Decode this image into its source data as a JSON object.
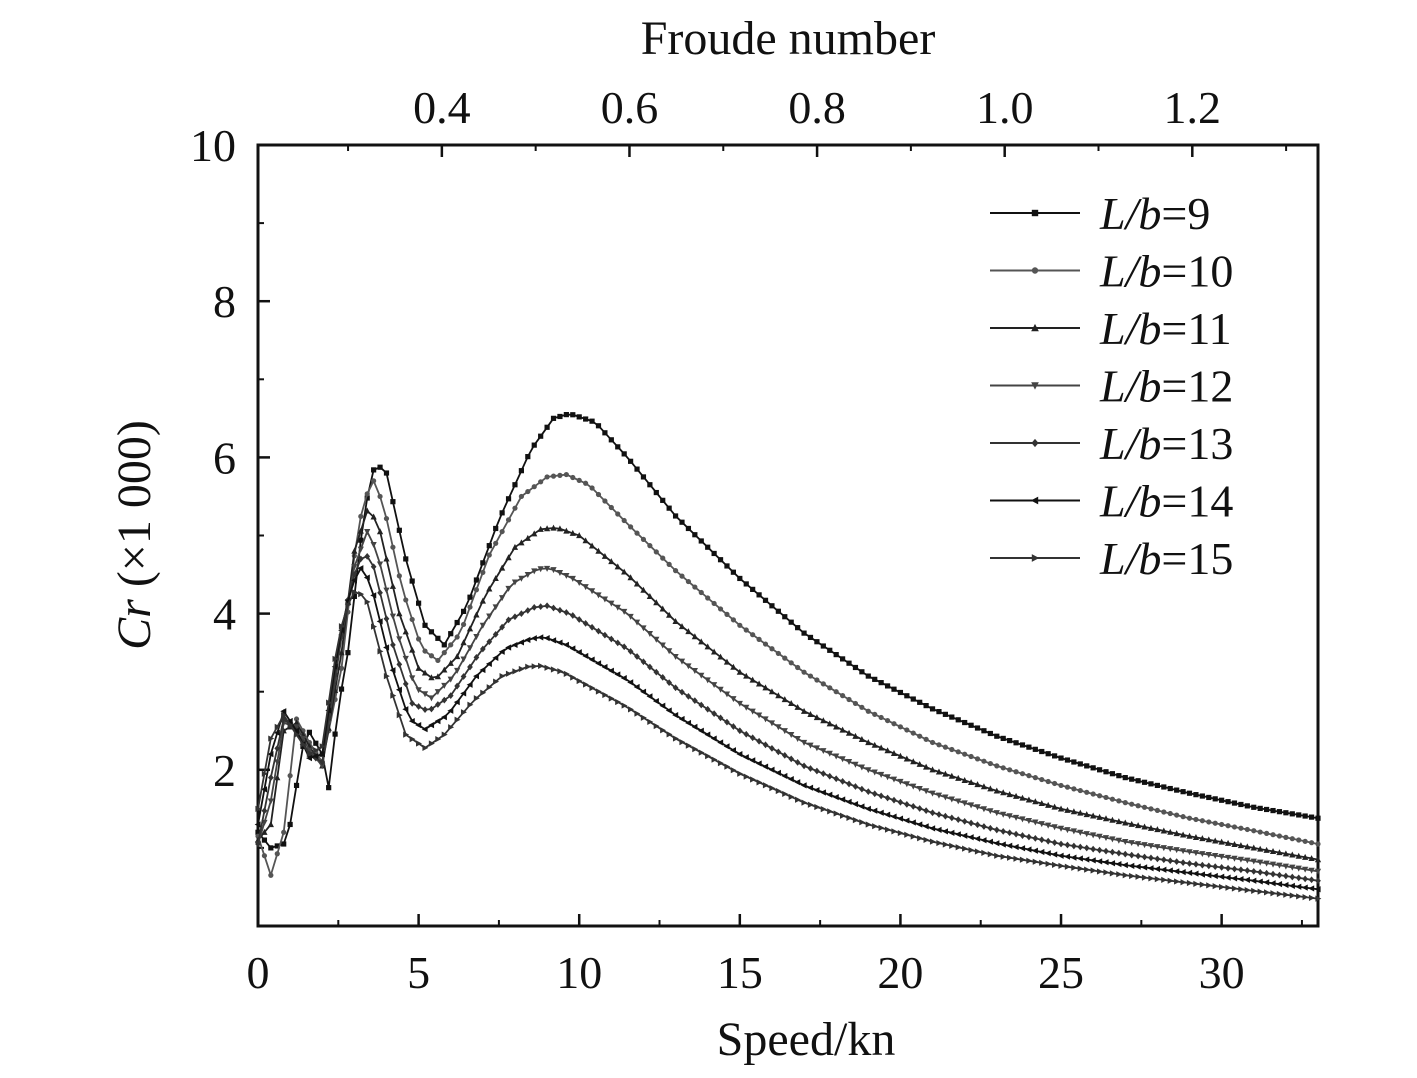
{
  "chart_data": {
    "type": "line",
    "xlabel": "Speed/kn",
    "ylabel": {
      "italic": "Cr",
      "rest": " (×1 000)"
    },
    "x2label": "Froude number",
    "xlim": [
      0,
      33
    ],
    "ylim": [
      0,
      10
    ],
    "x2lim": [
      0.204,
      1.334
    ],
    "xticks": [
      0,
      5,
      10,
      15,
      20,
      25,
      30
    ],
    "yticks": [
      2,
      4,
      6,
      8,
      10
    ],
    "x2ticks": [
      "0.4",
      "0.6",
      "0.8",
      "1.0",
      "1.2"
    ],
    "legend_position": "top-right",
    "grid": false,
    "series": [
      {
        "name": "L/b=9",
        "label_italic": "L/b",
        "label_rest": "=9",
        "marker": "square",
        "color": "#111111",
        "points": [
          [
            0,
            1.2
          ],
          [
            0.4,
            1.0
          ],
          [
            0.8,
            1.05
          ],
          [
            1.0,
            1.3
          ],
          [
            1.5,
            2.55
          ],
          [
            2.0,
            2.2
          ],
          [
            2.15,
            1.6
          ],
          [
            2.5,
            2.8
          ],
          [
            2.8,
            3.5
          ],
          [
            3.3,
            5.3
          ],
          [
            3.65,
            5.93
          ],
          [
            4.0,
            5.8
          ],
          [
            4.6,
            4.7
          ],
          [
            5.2,
            3.85
          ],
          [
            5.8,
            3.6
          ],
          [
            6.5,
            4.1
          ],
          [
            7.5,
            5.2
          ],
          [
            8.5,
            6.1
          ],
          [
            9.2,
            6.5
          ],
          [
            9.7,
            6.56
          ],
          [
            10.5,
            6.45
          ],
          [
            11.5,
            6.0
          ],
          [
            13,
            5.25
          ],
          [
            15,
            4.45
          ],
          [
            17,
            3.75
          ],
          [
            19,
            3.2
          ],
          [
            21,
            2.78
          ],
          [
            23,
            2.43
          ],
          [
            25,
            2.15
          ],
          [
            27,
            1.9
          ],
          [
            29,
            1.7
          ],
          [
            31,
            1.52
          ],
          [
            33,
            1.38
          ]
        ]
      },
      {
        "name": "L/b=10",
        "label_italic": "L/b",
        "label_rest": "=10",
        "marker": "circle",
        "color": "#555555",
        "points": [
          [
            0,
            1.15
          ],
          [
            0.4,
            0.65
          ],
          [
            0.8,
            1.2
          ],
          [
            1.2,
            2.65
          ],
          [
            1.6,
            2.35
          ],
          [
            2.0,
            2.1
          ],
          [
            2.6,
            3.3
          ],
          [
            3.1,
            5.1
          ],
          [
            3.55,
            5.75
          ],
          [
            3.9,
            5.4
          ],
          [
            4.5,
            4.3
          ],
          [
            5.1,
            3.55
          ],
          [
            5.6,
            3.4
          ],
          [
            6.3,
            3.75
          ],
          [
            7.2,
            4.75
          ],
          [
            8.2,
            5.5
          ],
          [
            9.0,
            5.75
          ],
          [
            9.6,
            5.78
          ],
          [
            10.3,
            5.65
          ],
          [
            11.5,
            5.15
          ],
          [
            13,
            4.55
          ],
          [
            15,
            3.85
          ],
          [
            17,
            3.25
          ],
          [
            19,
            2.75
          ],
          [
            21,
            2.35
          ],
          [
            23,
            2.05
          ],
          [
            25,
            1.8
          ],
          [
            27,
            1.58
          ],
          [
            29,
            1.38
          ],
          [
            31,
            1.22
          ],
          [
            33,
            1.05
          ]
        ]
      },
      {
        "name": "L/b=11",
        "label_italic": "L/b",
        "label_rest": "=11",
        "marker": "triangle-up",
        "color": "#222222",
        "points": [
          [
            0,
            1.1
          ],
          [
            0.4,
            1.3
          ],
          [
            0.8,
            2.5
          ],
          [
            1.2,
            2.6
          ],
          [
            1.6,
            2.3
          ],
          [
            2.0,
            2.05
          ],
          [
            2.6,
            3.5
          ],
          [
            3.0,
            4.8
          ],
          [
            3.45,
            5.38
          ],
          [
            3.8,
            5.05
          ],
          [
            4.4,
            4.0
          ],
          [
            5.0,
            3.3
          ],
          [
            5.5,
            3.15
          ],
          [
            6.2,
            3.45
          ],
          [
            7.1,
            4.25
          ],
          [
            8.0,
            4.85
          ],
          [
            8.8,
            5.08
          ],
          [
            9.3,
            5.1
          ],
          [
            10,
            5.0
          ],
          [
            11.5,
            4.5
          ],
          [
            13,
            3.9
          ],
          [
            15,
            3.25
          ],
          [
            17,
            2.75
          ],
          [
            19,
            2.35
          ],
          [
            21,
            2.0
          ],
          [
            23,
            1.73
          ],
          [
            25,
            1.5
          ],
          [
            27,
            1.32
          ],
          [
            29,
            1.15
          ],
          [
            31,
            1.0
          ],
          [
            33,
            0.85
          ]
        ]
      },
      {
        "name": "L/b=12",
        "label_italic": "L/b",
        "label_rest": "=12",
        "marker": "triangle-down",
        "color": "#444444",
        "points": [
          [
            0,
            1.05
          ],
          [
            0.4,
            1.6
          ],
          [
            0.8,
            2.6
          ],
          [
            1.2,
            2.55
          ],
          [
            1.6,
            2.25
          ],
          [
            2.0,
            2.05
          ],
          [
            2.6,
            3.7
          ],
          [
            3.0,
            4.6
          ],
          [
            3.4,
            5.05
          ],
          [
            3.7,
            4.8
          ],
          [
            4.3,
            3.8
          ],
          [
            4.9,
            3.05
          ],
          [
            5.4,
            2.92
          ],
          [
            6.1,
            3.2
          ],
          [
            7.0,
            3.85
          ],
          [
            7.9,
            4.38
          ],
          [
            8.7,
            4.57
          ],
          [
            9.1,
            4.58
          ],
          [
            9.8,
            4.45
          ],
          [
            11.5,
            4.0
          ],
          [
            13,
            3.45
          ],
          [
            15,
            2.85
          ],
          [
            17,
            2.35
          ],
          [
            19,
            2.0
          ],
          [
            21,
            1.7
          ],
          [
            23,
            1.45
          ],
          [
            25,
            1.25
          ],
          [
            27,
            1.08
          ],
          [
            29,
            0.95
          ],
          [
            31,
            0.83
          ],
          [
            33,
            0.7
          ]
        ]
      },
      {
        "name": "L/b=13",
        "label_italic": "L/b",
        "label_rest": "=13",
        "marker": "diamond",
        "color": "#333333",
        "points": [
          [
            0,
            1.05
          ],
          [
            0.4,
            1.9
          ],
          [
            0.8,
            2.65
          ],
          [
            1.2,
            2.5
          ],
          [
            1.6,
            2.2
          ],
          [
            2.0,
            2.1
          ],
          [
            2.5,
            3.5
          ],
          [
            2.9,
            4.4
          ],
          [
            3.3,
            4.8
          ],
          [
            3.6,
            4.6
          ],
          [
            4.2,
            3.6
          ],
          [
            4.8,
            2.85
          ],
          [
            5.3,
            2.75
          ],
          [
            6.0,
            2.95
          ],
          [
            6.9,
            3.5
          ],
          [
            7.8,
            3.92
          ],
          [
            8.6,
            4.08
          ],
          [
            9.0,
            4.1
          ],
          [
            9.7,
            4.0
          ],
          [
            11.5,
            3.55
          ],
          [
            13,
            3.05
          ],
          [
            15,
            2.5
          ],
          [
            17,
            2.05
          ],
          [
            19,
            1.72
          ],
          [
            21,
            1.45
          ],
          [
            23,
            1.23
          ],
          [
            25,
            1.05
          ],
          [
            27,
            0.92
          ],
          [
            29,
            0.8
          ],
          [
            31,
            0.7
          ],
          [
            33,
            0.58
          ]
        ]
      },
      {
        "name": "L/b=14",
        "label_italic": "L/b",
        "label_rest": "=14",
        "marker": "triangle-left",
        "color": "#111111",
        "points": [
          [
            0,
            1.3
          ],
          [
            0.4,
            2.2
          ],
          [
            0.8,
            2.75
          ],
          [
            1.2,
            2.5
          ],
          [
            1.6,
            2.15
          ],
          [
            2.0,
            2.2
          ],
          [
            2.5,
            3.6
          ],
          [
            2.9,
            4.35
          ],
          [
            3.2,
            4.58
          ],
          [
            3.5,
            4.4
          ],
          [
            4.1,
            3.4
          ],
          [
            4.7,
            2.65
          ],
          [
            5.2,
            2.52
          ],
          [
            5.9,
            2.7
          ],
          [
            6.8,
            3.2
          ],
          [
            7.7,
            3.55
          ],
          [
            8.5,
            3.68
          ],
          [
            8.9,
            3.7
          ],
          [
            9.6,
            3.6
          ],
          [
            11.5,
            3.15
          ],
          [
            13,
            2.7
          ],
          [
            15,
            2.2
          ],
          [
            17,
            1.8
          ],
          [
            19,
            1.5
          ],
          [
            21,
            1.25
          ],
          [
            23,
            1.06
          ],
          [
            25,
            0.9
          ],
          [
            27,
            0.78
          ],
          [
            29,
            0.68
          ],
          [
            31,
            0.58
          ],
          [
            33,
            0.47
          ]
        ]
      },
      {
        "name": "L/b=15",
        "label_italic": "L/b",
        "label_rest": "=15",
        "marker": "triangle-right",
        "color": "#333333",
        "points": [
          [
            0,
            1.5
          ],
          [
            0.4,
            2.4
          ],
          [
            0.8,
            2.7
          ],
          [
            1.2,
            2.45
          ],
          [
            1.6,
            2.2
          ],
          [
            2.0,
            2.3
          ],
          [
            2.5,
            3.7
          ],
          [
            2.9,
            4.25
          ],
          [
            3.1,
            4.3
          ],
          [
            3.4,
            4.15
          ],
          [
            4.0,
            3.2
          ],
          [
            4.6,
            2.45
          ],
          [
            5.2,
            2.28
          ],
          [
            5.8,
            2.45
          ],
          [
            6.7,
            2.88
          ],
          [
            7.6,
            3.2
          ],
          [
            8.4,
            3.32
          ],
          [
            8.8,
            3.33
          ],
          [
            9.5,
            3.25
          ],
          [
            11.5,
            2.8
          ],
          [
            13,
            2.4
          ],
          [
            15,
            1.95
          ],
          [
            17,
            1.58
          ],
          [
            19,
            1.3
          ],
          [
            21,
            1.08
          ],
          [
            23,
            0.9
          ],
          [
            25,
            0.77
          ],
          [
            27,
            0.65
          ],
          [
            29,
            0.55
          ],
          [
            31,
            0.45
          ],
          [
            33,
            0.35
          ]
        ]
      }
    ]
  }
}
